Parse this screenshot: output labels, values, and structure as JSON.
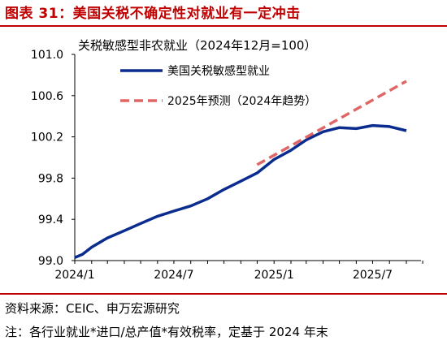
{
  "figure": {
    "title": "图表 31：美国关税不确定性对就业有一定冲击",
    "source": "资料来源：CEIC、申万宏源研究",
    "note": "注：各行业就业*进口/总产值*有效税率，定基于 2024 年末"
  },
  "colors": {
    "accent": "#c00000",
    "series_actual": "#0b2c8f",
    "series_forecast": "#e06666"
  },
  "chart_data": {
    "type": "line",
    "title": "关税敏感型非农就业（2024年12月=100）",
    "xlabel": "",
    "ylabel": "",
    "ylim": [
      99.0,
      101.0
    ],
    "yticks": [
      "99.0",
      "99.4",
      "99.8",
      "100.2",
      "100.6",
      "101.0"
    ],
    "x_tick_labels": [
      "2024/1",
      "2024/7",
      "2025/1",
      "2025/7"
    ],
    "legend_position": "top-center",
    "grid": false,
    "series": [
      {
        "name": "美国关税敏感型就业",
        "style": "solid",
        "x": [
          "2024-01-01",
          "2024-01-15",
          "2024-02-01",
          "2024-03-01",
          "2024-04-01",
          "2024-05-01",
          "2024-06-01",
          "2024-07-01",
          "2024-08-01",
          "2024-09-01",
          "2024-10-01",
          "2024-11-01",
          "2024-12-01",
          "2025-01-01",
          "2025-02-01",
          "2025-03-01",
          "2025-04-01",
          "2025-05-01",
          "2025-06-01",
          "2025-07-01",
          "2025-08-01",
          "2025-09-01"
        ],
        "values": [
          99.03,
          99.06,
          99.13,
          99.22,
          99.29,
          99.36,
          99.43,
          99.48,
          99.53,
          99.6,
          99.69,
          99.77,
          99.85,
          99.98,
          100.07,
          100.17,
          100.25,
          100.29,
          100.28,
          100.31,
          100.3,
          100.26
        ]
      },
      {
        "name": "2025年预测（2024年趋势）",
        "style": "dashed",
        "x": [
          "2024-12-01",
          "2025-09-01"
        ],
        "values": [
          99.93,
          100.74
        ]
      }
    ]
  }
}
